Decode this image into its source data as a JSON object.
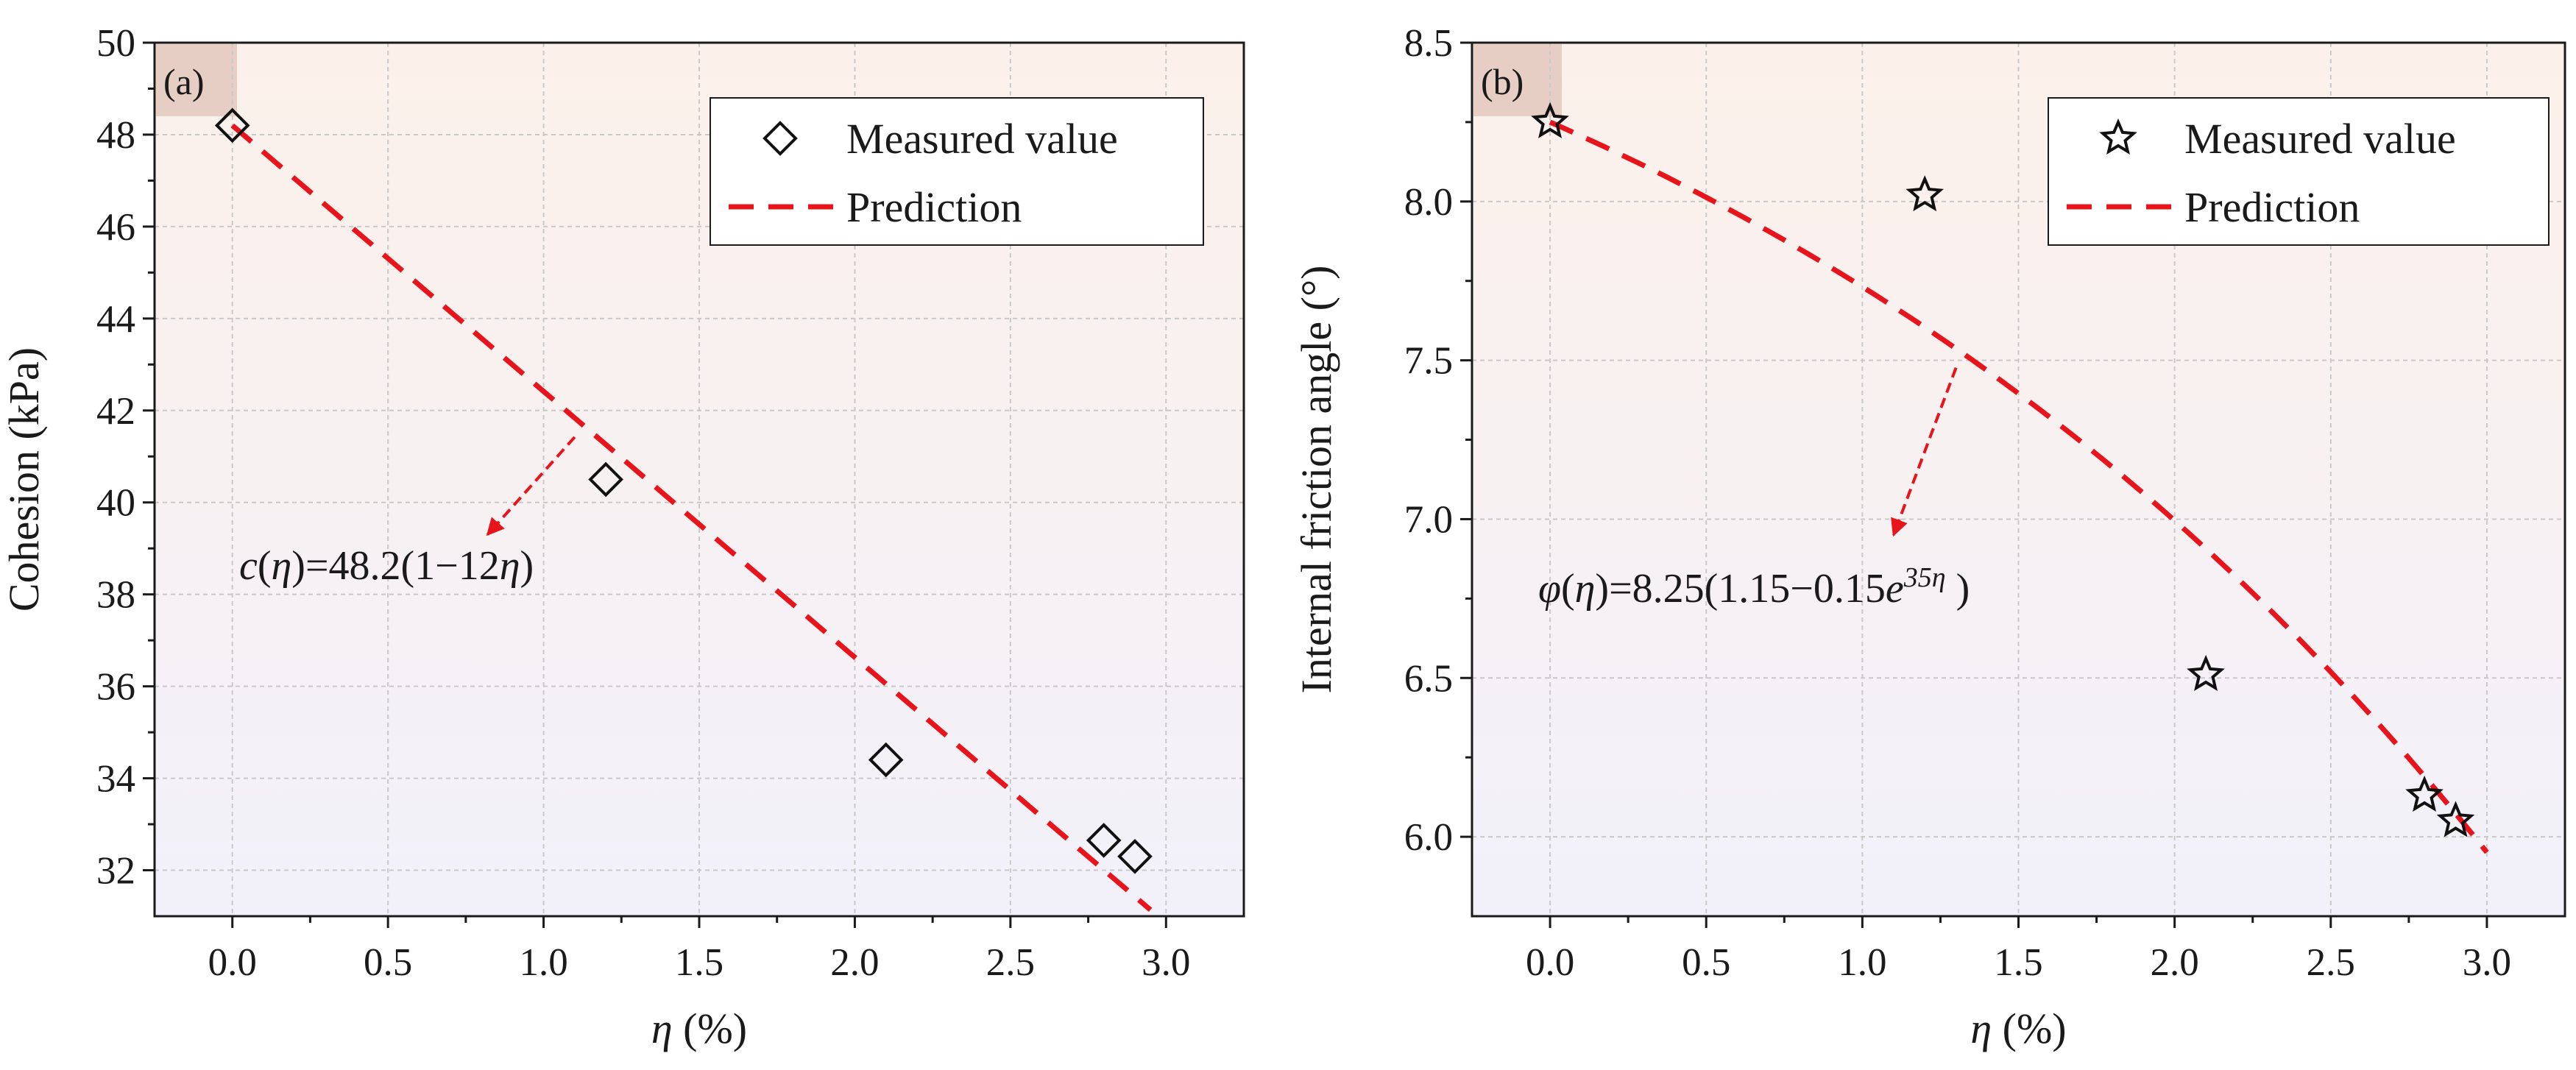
{
  "chart_data": [
    {
      "type": "scatter",
      "panel": "(a)",
      "xlabel": "η (%)",
      "ylabel": "Cohesion (kPa)",
      "xlim": [
        -0.25,
        3.25
      ],
      "ylim": [
        31,
        50
      ],
      "xticks": [
        0.0,
        0.5,
        1.0,
        1.5,
        2.0,
        2.5,
        3.0
      ],
      "xtick_labels": [
        "0.0",
        "0.5",
        "1.0",
        "1.5",
        "2.0",
        "2.5",
        "3.0"
      ],
      "yticks": [
        32,
        34,
        36,
        38,
        40,
        42,
        44,
        46,
        48,
        50
      ],
      "ytick_labels": [
        "32",
        "34",
        "36",
        "38",
        "40",
        "42",
        "44",
        "46",
        "48",
        "50"
      ],
      "measured": {
        "name": "Measured value",
        "marker": "diamond",
        "x": [
          0.0,
          1.2,
          2.1,
          2.8,
          2.9
        ],
        "y": [
          48.2,
          40.5,
          34.4,
          32.65,
          32.3
        ]
      },
      "prediction": {
        "name": "Prediction",
        "color": "#e8141b",
        "x_range": [
          0.0,
          2.95
        ],
        "model": "linear",
        "c0": 48.2,
        "k": 12
      },
      "annotation": {
        "parts": [
          {
            "text": "c",
            "italic": true
          },
          {
            "text": "(",
            "italic": false
          },
          {
            "text": "η",
            "italic": true
          },
          {
            "text": ")=48.2(1−12",
            "italic": false
          },
          {
            "text": "η",
            "italic": true
          },
          {
            "text": ")",
            "italic": false
          }
        ],
        "arrow_from_x": 1.1,
        "arrow_to_x": 0.82,
        "arrow_to_y": 39.3
      }
    },
    {
      "type": "scatter",
      "panel": "(b)",
      "xlabel": "η (%)",
      "ylabel": "Internal friction angle (°)",
      "xlim": [
        -0.25,
        3.25
      ],
      "ylim": [
        5.75,
        8.5
      ],
      "xticks": [
        0.0,
        0.5,
        1.0,
        1.5,
        2.0,
        2.5,
        3.0
      ],
      "xtick_labels": [
        "0.0",
        "0.5",
        "1.0",
        "1.5",
        "2.0",
        "2.5",
        "3.0"
      ],
      "yticks": [
        6.0,
        6.5,
        7.0,
        7.5,
        8.0,
        8.5
      ],
      "ytick_labels": [
        "6.0",
        "6.5",
        "7.0",
        "7.5",
        "8.0",
        "8.5"
      ],
      "measured": {
        "name": "Measured value",
        "marker": "star",
        "x": [
          0.0,
          1.2,
          2.1,
          2.8,
          2.9
        ],
        "y": [
          8.25,
          8.02,
          6.51,
          6.13,
          6.05
        ]
      },
      "prediction": {
        "name": "Prediction",
        "color": "#e8141b",
        "x_range": [
          0.0,
          3.0
        ],
        "model": "exponential",
        "phi0": 8.25,
        "a": 1.15,
        "b": 0.15,
        "rate": 35
      },
      "annotation": {
        "parts": [
          {
            "text": "φ",
            "italic": true
          },
          {
            "text": "(",
            "italic": false
          },
          {
            "text": "η",
            "italic": true
          },
          {
            "text": ")=8.25(1.15−0.15",
            "italic": false
          },
          {
            "text": "e",
            "italic": true
          },
          {
            "text": "35η",
            "italic": true,
            "sup": true
          },
          {
            "text": " )",
            "italic": false
          }
        ],
        "arrow_from_x": 1.3,
        "arrow_to_x": 1.1,
        "arrow_to_y": 6.95
      }
    }
  ]
}
